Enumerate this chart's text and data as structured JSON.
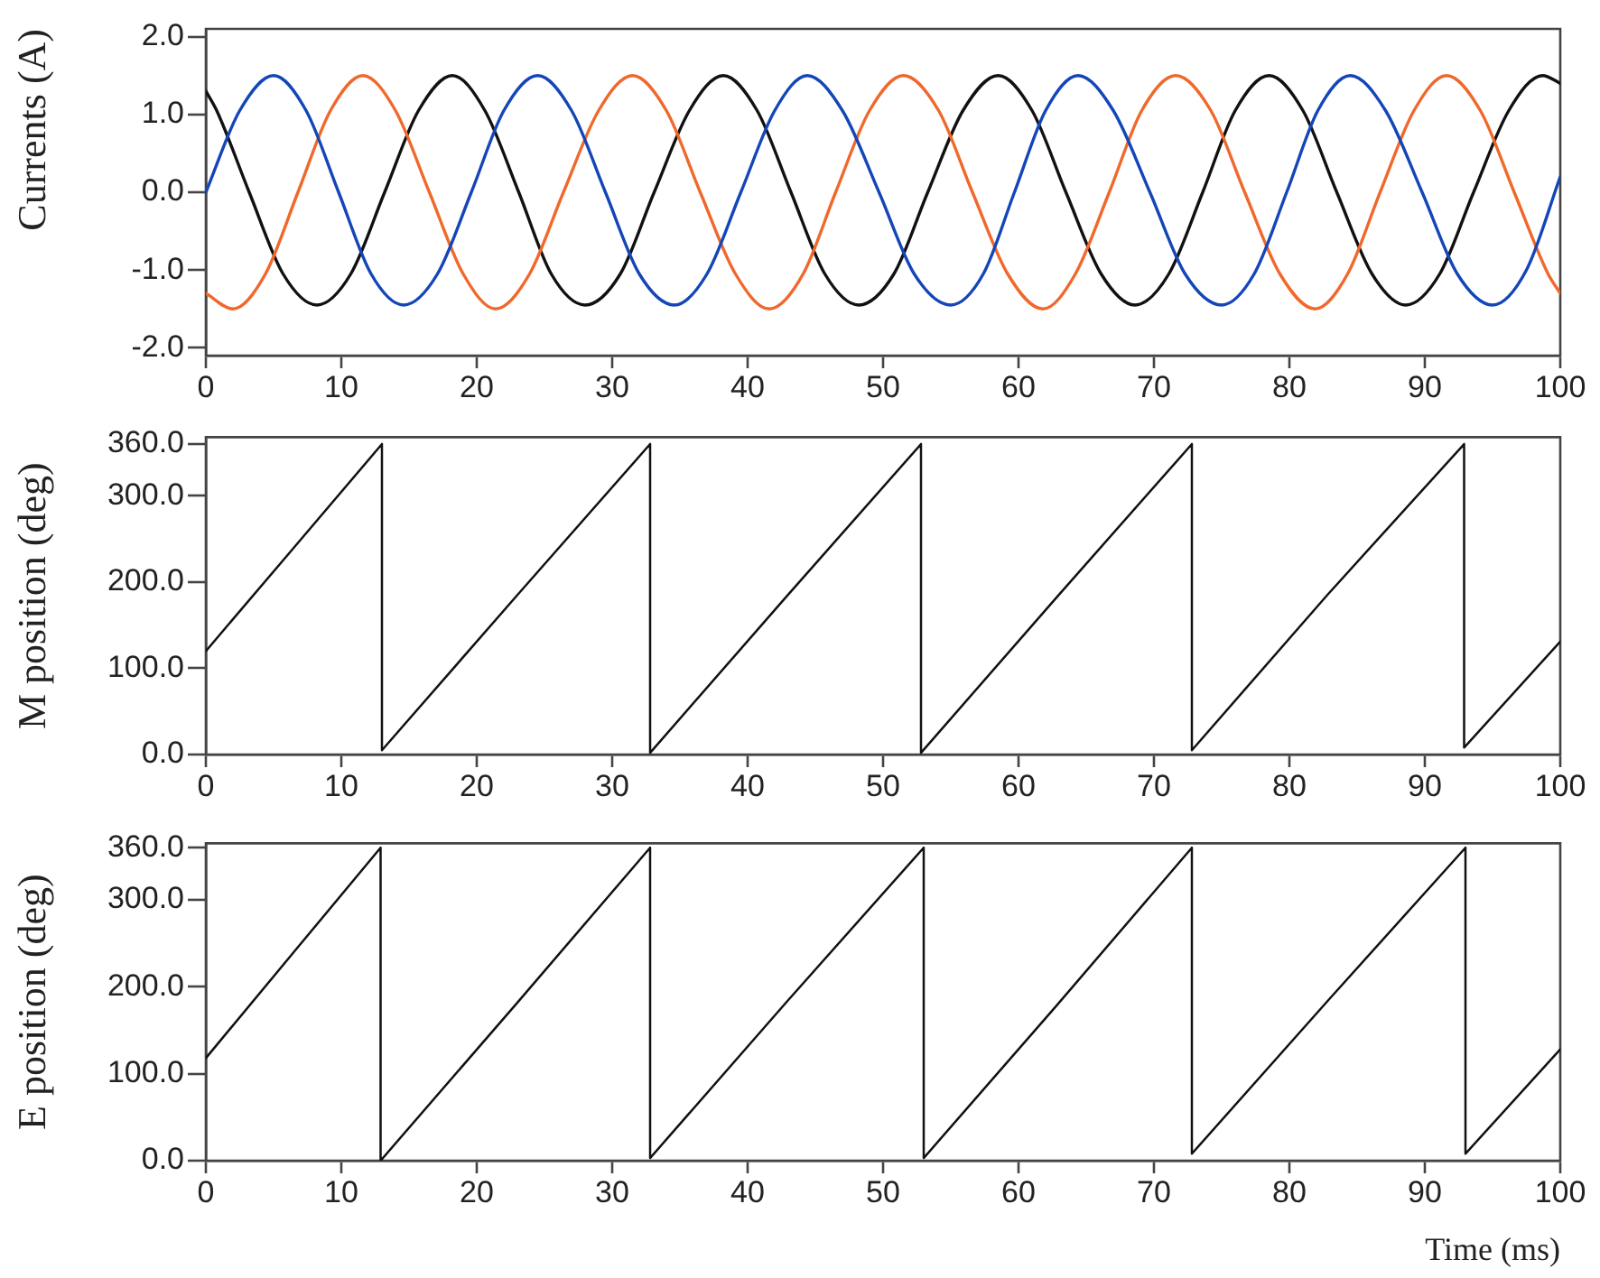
{
  "chart_data": [
    {
      "type": "line",
      "ylabel": "Currents (A)",
      "xlim": [
        0,
        100
      ],
      "xticks": [
        0,
        10,
        20,
        30,
        40,
        50,
        60,
        70,
        80,
        90,
        100
      ],
      "ylim": [
        -2.1,
        2.1
      ],
      "yticks": [
        {
          "value": -2,
          "label": "-2.0"
        },
        {
          "value": -1,
          "label": "-1.0"
        },
        {
          "value": 0,
          "label": "0.0"
        },
        {
          "value": 1,
          "label": "1.0"
        },
        {
          "value": 2,
          "label": "2.0"
        }
      ],
      "grid": false,
      "series": [
        {
          "color": "#1446b8",
          "x": [
            0,
            2.5,
            5.0,
            7.4,
            9.8,
            12.2,
            14.6,
            17.1,
            19.6,
            22.0,
            24.5,
            27.0,
            29.5,
            32.0,
            34.6,
            37.0,
            39.5,
            42.0,
            44.4,
            47.0,
            49.7,
            52.3,
            55.0,
            57.4,
            59.7,
            62.0,
            64.4,
            67.0,
            69.7,
            72.3,
            75.0,
            77.4,
            79.8,
            82.1,
            84.5,
            87.1,
            89.8,
            92.4,
            95.0,
            97.5,
            100
          ],
          "values": [
            0.0,
            1.05,
            1.5,
            1.05,
            0.0,
            -1.05,
            -1.45,
            -1.05,
            0.0,
            1.05,
            1.5,
            1.05,
            0.0,
            -1.05,
            -1.45,
            -1.05,
            0.0,
            1.05,
            1.5,
            1.05,
            0.0,
            -1.05,
            -1.45,
            -1.05,
            0.0,
            1.05,
            1.5,
            1.05,
            0.0,
            -1.05,
            -1.45,
            -1.05,
            0.0,
            1.05,
            1.5,
            1.05,
            0.0,
            -1.05,
            -1.45,
            -1.0,
            0.2
          ]
        },
        {
          "color": "#f0682c",
          "x": [
            0,
            2.0,
            4.4,
            6.8,
            9.2,
            11.6,
            14.0,
            16.5,
            19.0,
            21.4,
            23.9,
            26.4,
            29.0,
            31.5,
            34.0,
            36.5,
            39.1,
            41.6,
            44.1,
            46.5,
            49.0,
            51.5,
            54.1,
            56.6,
            59.2,
            61.8,
            64.2,
            66.7,
            69.1,
            71.6,
            74.2,
            76.7,
            79.3,
            81.9,
            84.3,
            86.7,
            89.2,
            91.6,
            94.1,
            96.6,
            99.1,
            100
          ],
          "values": [
            -1.3,
            -1.5,
            -1.05,
            0.0,
            1.05,
            1.5,
            1.05,
            0.0,
            -1.05,
            -1.5,
            -1.05,
            0.0,
            1.05,
            1.5,
            1.05,
            0.0,
            -1.05,
            -1.5,
            -1.05,
            0.0,
            1.05,
            1.5,
            1.05,
            0.0,
            -1.05,
            -1.5,
            -1.05,
            0.0,
            1.05,
            1.5,
            1.05,
            0.0,
            -1.05,
            -1.5,
            -1.05,
            0.0,
            1.05,
            1.5,
            1.05,
            0.0,
            -1.05,
            -1.3
          ]
        },
        {
          "color": "#111111",
          "x": [
            0,
            0.8,
            3.2,
            5.7,
            8.2,
            10.7,
            13.2,
            15.7,
            18.2,
            20.6,
            23.1,
            25.5,
            28.0,
            30.6,
            33.1,
            35.7,
            38.2,
            40.7,
            43.2,
            45.7,
            48.2,
            50.8,
            53.3,
            55.9,
            58.5,
            61.0,
            63.5,
            66.1,
            68.6,
            71.1,
            73.6,
            76.0,
            78.5,
            81.0,
            83.5,
            86.1,
            88.6,
            91.1,
            93.6,
            96.2,
            98.7,
            100
          ],
          "values": [
            1.3,
            1.05,
            0.0,
            -1.05,
            -1.45,
            -1.05,
            0.0,
            1.05,
            1.5,
            1.05,
            0.0,
            -1.05,
            -1.45,
            -1.05,
            0.0,
            1.05,
            1.5,
            1.05,
            0.0,
            -1.05,
            -1.45,
            -1.05,
            0.0,
            1.05,
            1.5,
            1.05,
            0.0,
            -1.05,
            -1.45,
            -1.05,
            0.0,
            1.05,
            1.5,
            1.05,
            0.0,
            -1.05,
            -1.45,
            -1.05,
            0.0,
            1.05,
            1.5,
            1.4
          ]
        }
      ]
    },
    {
      "type": "line",
      "ylabel": "M position (deg)",
      "xlim": [
        0,
        100
      ],
      "xticks": [
        0,
        10,
        20,
        30,
        40,
        50,
        60,
        70,
        80,
        90,
        100
      ],
      "ylim": [
        0,
        368
      ],
      "yticks": [
        {
          "value": 0,
          "label": "0.0"
        },
        {
          "value": 100,
          "label": "100.0"
        },
        {
          "value": 200,
          "label": "200.0"
        },
        {
          "value": 300,
          "label": "300.0"
        },
        {
          "value": 360,
          "label": "360.0"
        }
      ],
      "grid": false,
      "series": [
        {
          "color": "#111111",
          "x": [
            0,
            6.5,
            13.0,
            13.0,
            23.0,
            32.8,
            32.8,
            42.8,
            52.8,
            52.8,
            62.8,
            72.8,
            72.8,
            82.8,
            92.9,
            92.9,
            100
          ],
          "values": [
            120,
            240,
            360,
            5,
            185,
            360,
            2,
            182,
            360,
            2,
            182,
            360,
            5,
            185,
            360,
            8,
            131
          ]
        }
      ]
    },
    {
      "type": "line",
      "xlabel": "Time (ms)",
      "ylabel": "E position (deg)",
      "xlim": [
        0,
        100
      ],
      "xticks": [
        0,
        10,
        20,
        30,
        40,
        50,
        60,
        70,
        80,
        90,
        100
      ],
      "ylim": [
        0,
        365
      ],
      "yticks": [
        {
          "value": 0,
          "label": "0.0"
        },
        {
          "value": 100,
          "label": "100.0"
        },
        {
          "value": 200,
          "label": "200.0"
        },
        {
          "value": 300,
          "label": "300.0"
        },
        {
          "value": 360,
          "label": "360.0"
        }
      ],
      "grid": false,
      "series": [
        {
          "color": "#111111",
          "x": [
            0,
            6.5,
            12.9,
            12.9,
            22.9,
            32.8,
            32.8,
            42.9,
            53.0,
            53.0,
            62.9,
            72.8,
            72.8,
            82.9,
            93.0,
            93.0,
            100
          ],
          "values": [
            118,
            240,
            360,
            0,
            180,
            360,
            3,
            183,
            360,
            3,
            180,
            360,
            8,
            185,
            360,
            8,
            128
          ]
        }
      ]
    }
  ]
}
